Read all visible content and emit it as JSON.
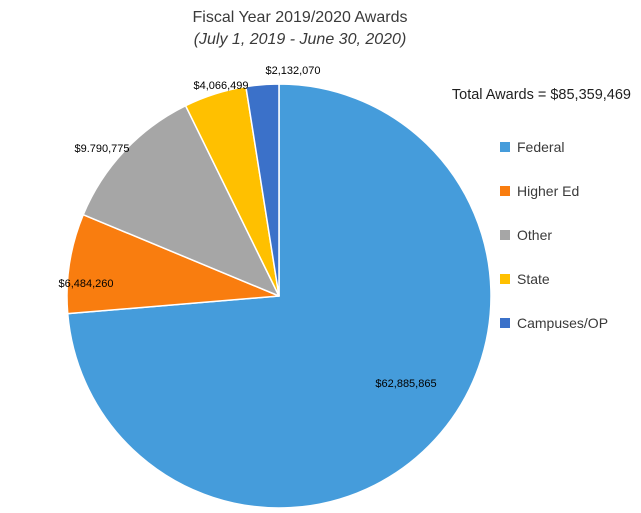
{
  "header": {
    "title": "Fiscal Year 2019/2020 Awards",
    "subtitle": "(July 1, 2019 - June 30, 2020)"
  },
  "total_line": "Total Awards = $85,359,469",
  "chart_data": {
    "type": "pie",
    "title": "Fiscal Year 2019/2020 Awards",
    "subtitle": "(July 1, 2019 - June 30, 2020)",
    "total_label": "Total Awards = $85,359,469",
    "total_value": 85359469,
    "start_angle_deg": 0,
    "direction": "clockwise",
    "legend_position": "right",
    "grid": false,
    "points": [
      {
        "name": "Federal",
        "value": 62885865,
        "label": "$62,885,865",
        "color": "#459CDB",
        "label_placement": "inside"
      },
      {
        "name": "Higher Ed",
        "value": 6484260,
        "label": "$6,484,260",
        "color": "#F97D0F",
        "label_placement": "outside"
      },
      {
        "name": "Other",
        "value": 9790775,
        "label": "$9.790,775",
        "color": "#A6A6A6",
        "label_placement": "outside"
      },
      {
        "name": "State",
        "value": 4066499,
        "label": "$4,066,499",
        "color": "#FFC000",
        "label_placement": "outside"
      },
      {
        "name": "Campuses/OP",
        "value": 2132070,
        "label": "$2,132,070",
        "color": "#3B71C9",
        "label_placement": "outside"
      }
    ]
  }
}
